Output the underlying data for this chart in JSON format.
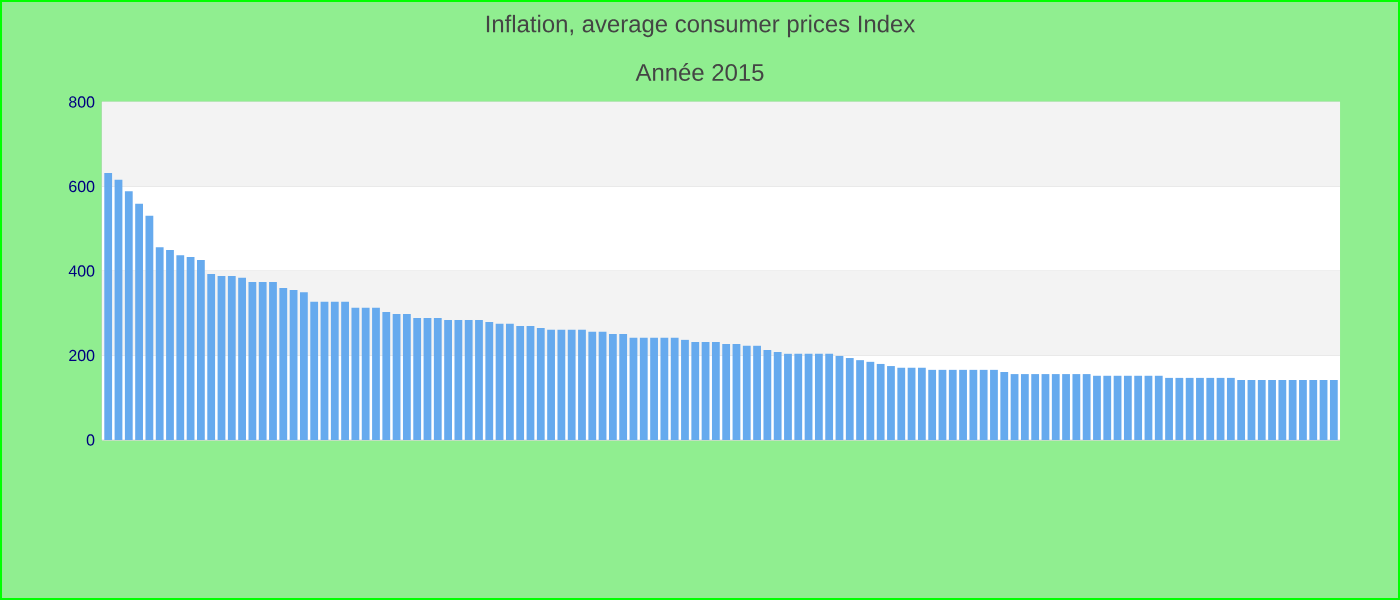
{
  "chart_data": {
    "type": "bar",
    "title": "Inflation, average consumer prices  Index",
    "subtitle": "Année 2015",
    "categories": [
      null,
      null,
      null,
      null,
      null,
      null,
      null,
      null,
      null,
      null,
      null,
      null,
      null,
      null,
      null,
      null,
      null,
      null,
      null,
      null,
      null,
      null,
      null,
      null,
      null,
      null,
      null,
      null,
      null,
      null,
      null,
      null,
      null,
      null,
      null,
      null,
      null,
      null,
      null,
      null,
      null,
      null,
      null,
      null,
      null,
      null,
      null,
      null,
      null,
      null,
      null,
      null,
      null,
      null,
      null,
      null,
      null,
      null,
      null,
      null,
      null,
      null,
      null,
      null,
      null,
      null,
      null,
      null,
      null,
      null,
      null,
      null,
      null,
      null,
      null,
      null,
      null,
      null,
      null,
      null,
      null,
      null,
      null,
      null,
      null,
      null,
      null,
      null,
      null,
      null,
      null,
      null,
      null,
      null,
      null,
      null,
      null,
      null,
      null,
      null,
      null,
      null,
      null,
      null,
      null,
      null,
      null,
      null,
      null,
      null,
      null,
      null,
      null,
      null,
      null,
      null,
      null,
      null,
      null,
      null
    ],
    "values": [
      632,
      616,
      589,
      559,
      531,
      456,
      450,
      437,
      433,
      426,
      393,
      388,
      388,
      384,
      374,
      374,
      374,
      360,
      355,
      350,
      327,
      327,
      327,
      327,
      313,
      313,
      313,
      303,
      298,
      298,
      289,
      289,
      289,
      284,
      284,
      284,
      284,
      279,
      275,
      275,
      270,
      270,
      265,
      261,
      261,
      261,
      261,
      256,
      256,
      251,
      251,
      242,
      242,
      242,
      242,
      242,
      237,
      232,
      232,
      232,
      227,
      227,
      223,
      223,
      213,
      208,
      204,
      204,
      204,
      204,
      204,
      199,
      194,
      189,
      185,
      180,
      175,
      171,
      171,
      171,
      166,
      166,
      166,
      166,
      166,
      166,
      166,
      161,
      156,
      156,
      156,
      156,
      156,
      156,
      156,
      156,
      152,
      152,
      152,
      152,
      152,
      152,
      152,
      147,
      147,
      147,
      147,
      147,
      147,
      147,
      142,
      142,
      142,
      142,
      142,
      142,
      142,
      142,
      142,
      142
    ],
    "color": "#66aaee",
    "ylim": [
      0,
      800
    ],
    "yticks": [
      0,
      200,
      400,
      600,
      800
    ],
    "grid": "y"
  }
}
